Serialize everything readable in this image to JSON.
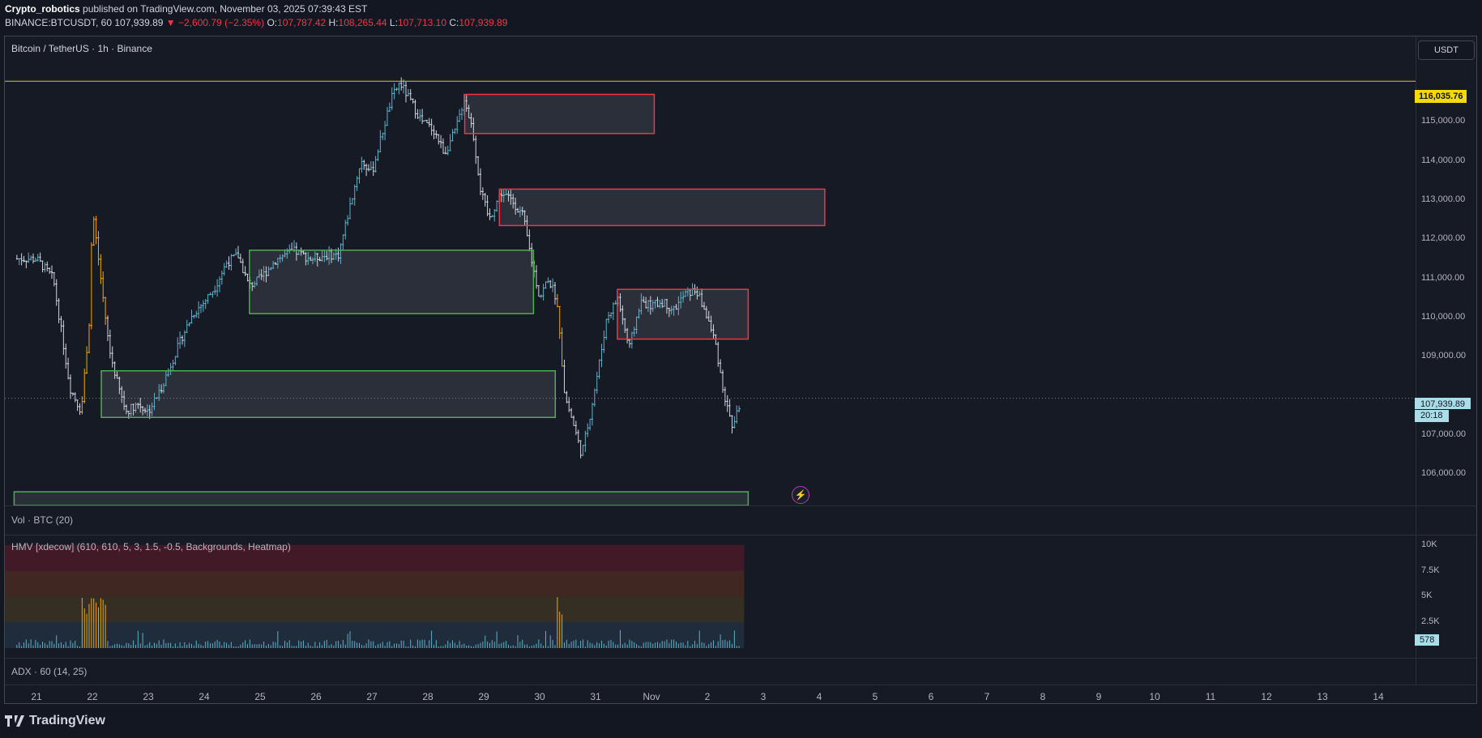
{
  "header": {
    "author": "Crypto_robotics",
    "published": "published on TradingView.com, November 03, 2025 07:39:43 EST",
    "symbol": "BINANCE:BTCUSDT, 60",
    "last": "107,939.89",
    "change": "−2,600.79 (−2.35%)",
    "o_label": "O:",
    "o": "107,787.42",
    "h_label": "H:",
    "h": "108,265.44",
    "l_label": "L:",
    "l": "107,713.10",
    "c_label": "C:",
    "c": "107,939.89"
  },
  "chart_title": "Bitcoin / TetherUS · 1h · Binance",
  "currency_button": "USDT",
  "resistance_tag": "116,035.76",
  "price_tag": "107,939.89",
  "countdown_tag": "20:18",
  "volume_tag": "578",
  "indicators": {
    "vol": "Vol · BTC (20)",
    "hmv": "HMV [xdecow] (610, 610, 5, 3, 1.5, -0.5, Backgrounds, Heatmap)",
    "adx": "ADX · 60 (14, 25)"
  },
  "y_axis_ticks": [
    "115,000.00",
    "114,000.00",
    "113,000.00",
    "112,000.00",
    "111,000.00",
    "110,000.00",
    "109,000.00",
    "107,000.00",
    "106,000.00"
  ],
  "vol_axis_ticks": [
    "10K",
    "7.5K",
    "5K",
    "2.5K"
  ],
  "x_axis_ticks": [
    "21",
    "22",
    "23",
    "24",
    "25",
    "26",
    "27",
    "28",
    "29",
    "30",
    "31",
    "Nov",
    "2",
    "3",
    "4",
    "5",
    "6",
    "7",
    "8",
    "9",
    "10",
    "11",
    "12",
    "13",
    "14"
  ],
  "brand": "TradingView",
  "colors": {
    "background": "#131722",
    "up": "#5fb0c8",
    "down": "#d1d4dc",
    "supply_zone": "#f23645",
    "demand_zone": "#4caf50",
    "resistance": "#e6c619",
    "price_tag": "#a9dde8"
  },
  "chart_data": {
    "type": "candlestick",
    "ylim": [
      105200,
      117200
    ],
    "resistance_level": 116035.76,
    "last_price": 107939.89,
    "price_path": [
      [
        21.0,
        111500
      ],
      [
        21.3,
        111000
      ],
      [
        21.6,
        108200
      ],
      [
        21.8,
        107600
      ],
      [
        21.95,
        110000
      ],
      [
        22.0,
        112800
      ],
      [
        22.15,
        111000
      ],
      [
        22.3,
        109200
      ],
      [
        22.45,
        108300
      ],
      [
        22.6,
        107600
      ],
      [
        22.8,
        107800
      ],
      [
        23.0,
        107600
      ],
      [
        23.2,
        108100
      ],
      [
        23.4,
        108800
      ],
      [
        23.6,
        109500
      ],
      [
        23.8,
        110100
      ],
      [
        24.0,
        110400
      ],
      [
        24.2,
        110800
      ],
      [
        24.4,
        111400
      ],
      [
        24.6,
        111600
      ],
      [
        24.8,
        110800
      ],
      [
        25.0,
        111000
      ],
      [
        25.3,
        111500
      ],
      [
        25.6,
        111700
      ],
      [
        25.9,
        111500
      ],
      [
        26.2,
        111600
      ],
      [
        26.4,
        111600
      ],
      [
        26.6,
        112800
      ],
      [
        26.8,
        114000
      ],
      [
        27.0,
        113700
      ],
      [
        27.2,
        114800
      ],
      [
        27.35,
        115600
      ],
      [
        27.5,
        116000
      ],
      [
        27.7,
        115500
      ],
      [
        27.9,
        115000
      ],
      [
        28.1,
        114800
      ],
      [
        28.3,
        114200
      ],
      [
        28.5,
        114800
      ],
      [
        28.65,
        115600
      ],
      [
        28.8,
        114800
      ],
      [
        28.95,
        113200
      ],
      [
        29.1,
        112500
      ],
      [
        29.3,
        113200
      ],
      [
        29.5,
        113000
      ],
      [
        29.7,
        112600
      ],
      [
        29.85,
        111500
      ],
      [
        30.0,
        110500
      ],
      [
        30.15,
        111000
      ],
      [
        30.3,
        110500
      ],
      [
        30.45,
        108000
      ],
      [
        30.6,
        107300
      ],
      [
        30.75,
        106500
      ],
      [
        30.9,
        107500
      ],
      [
        31.05,
        108700
      ],
      [
        31.2,
        110000
      ],
      [
        31.4,
        110500
      ],
      [
        31.6,
        109200
      ],
      [
        31.8,
        110400
      ],
      [
        32.0,
        110300
      ],
      [
        32.2,
        110400
      ],
      [
        32.4,
        110200
      ],
      [
        32.6,
        110600
      ],
      [
        32.8,
        110700
      ],
      [
        33.0,
        110000
      ],
      [
        33.15,
        109300
      ],
      [
        33.3,
        108000
      ],
      [
        33.45,
        107200
      ],
      [
        33.6,
        107900
      ]
    ],
    "zones": [
      {
        "kind": "supply",
        "x_from": 28.66,
        "x_to": 32.05,
        "y_from": 114700,
        "y_to": 115700
      },
      {
        "kind": "supply",
        "x_from": 29.28,
        "x_to": 35.1,
        "y_from": 112350,
        "y_to": 113280
      },
      {
        "kind": "supply",
        "x_from": 31.39,
        "x_to": 33.73,
        "y_from": 109450,
        "y_to": 110720
      },
      {
        "kind": "demand",
        "x_from": 24.81,
        "x_to": 29.89,
        "y_from": 110100,
        "y_to": 111720
      },
      {
        "kind": "demand",
        "x_from": 22.16,
        "x_to": 30.28,
        "y_from": 107450,
        "y_to": 108640
      },
      {
        "kind": "demand",
        "x_from": 20.6,
        "x_to": 33.73,
        "y_from": 105000,
        "y_to": 105550
      }
    ],
    "volume_ylim": [
      0,
      10000
    ],
    "volume_last": 578
  }
}
